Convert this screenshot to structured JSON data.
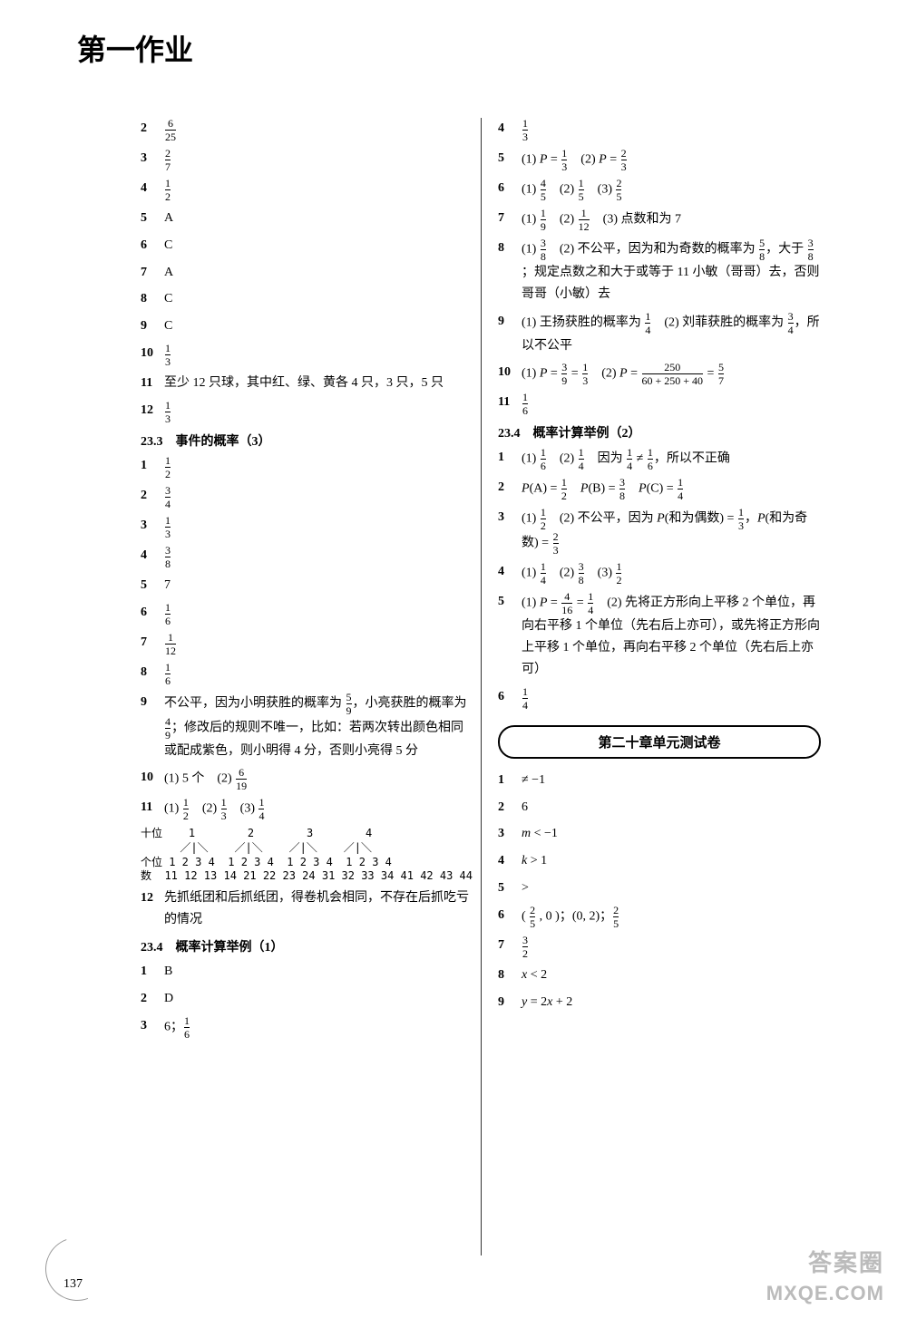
{
  "page_title": "第一作业",
  "page_number": "137",
  "watermark1": "答案圈",
  "watermark2": "MXQE.COM",
  "left": {
    "items_a": [
      {
        "n": "2",
        "html": "<span class='frac'><span class='n'>6</span><span class='d'>25</span></span>"
      },
      {
        "n": "3",
        "html": "<span class='frac'><span class='n'>2</span><span class='d'>7</span></span>"
      },
      {
        "n": "4",
        "html": "<span class='frac'><span class='n'>1</span><span class='d'>2</span></span>"
      },
      {
        "n": "5",
        "html": "A"
      },
      {
        "n": "6",
        "html": "C"
      },
      {
        "n": "7",
        "html": "A"
      },
      {
        "n": "8",
        "html": "C"
      },
      {
        "n": "9",
        "html": "C"
      },
      {
        "n": "10",
        "html": "<span class='frac'><span class='n'>1</span><span class='d'>3</span></span>"
      },
      {
        "n": "11",
        "html": "至少 12 只球，其中红、绿、黄各 4 只，3 只，5 只"
      },
      {
        "n": "12",
        "html": "<span class='frac'><span class='n'>1</span><span class='d'>3</span></span>"
      }
    ],
    "section_b": "23.3　事件的概率（3）",
    "items_b": [
      {
        "n": "1",
        "html": "<span class='frac'><span class='n'>1</span><span class='d'>2</span></span>"
      },
      {
        "n": "2",
        "html": "<span class='frac'><span class='n'>3</span><span class='d'>4</span></span>"
      },
      {
        "n": "3",
        "html": "<span class='frac'><span class='n'>1</span><span class='d'>3</span></span>"
      },
      {
        "n": "4",
        "html": "<span class='frac'><span class='n'>3</span><span class='d'>8</span></span>"
      },
      {
        "n": "5",
        "html": "7"
      },
      {
        "n": "6",
        "html": "<span class='frac'><span class='n'>1</span><span class='d'>6</span></span>"
      },
      {
        "n": "7",
        "html": "<span class='frac'><span class='n'>1</span><span class='d'>12</span></span>"
      },
      {
        "n": "8",
        "html": "<span class='frac'><span class='n'>1</span><span class='d'>6</span></span>"
      },
      {
        "n": "9",
        "html": "不公平，因为小明获胜的概率为 <span class='frac'><span class='n'>5</span><span class='d'>9</span></span>，小亮获胜的概率为 <span class='frac'><span class='n'>4</span><span class='d'>9</span></span>；修改后的规则不唯一，比如：若两次转出颜色相同或配成紫色，则小明得 4 分，否则小亮得 5 分"
      },
      {
        "n": "10",
        "html": "(1) 5 个　(2) <span class='frac'><span class='n'>6</span><span class='d'>19</span></span>"
      },
      {
        "n": "11",
        "html": "(1) <span class='frac'><span class='n'>1</span><span class='d'>2</span></span>　(2) <span class='frac'><span class='n'>1</span><span class='d'>3</span></span>　(3) <span class='frac'><span class='n'>1</span><span class='d'>4</span></span>"
      }
    ],
    "tree": {
      "row1": "十位    1        2        3        4",
      "row2": "      ／|＼    ／|＼    ／|＼    ／|＼",
      "row3": "个位 1 2 3 4  1 2 3 4  1 2 3 4  1 2 3 4",
      "row4": "数  11 12 13 14 21 22 23 24 31 32 33 34 41 42 43 44"
    },
    "items_b2": [
      {
        "n": "12",
        "html": "先抓纸团和后抓纸团，得卷机会相同，不存在后抓吃亏的情况"
      }
    ],
    "section_c": "23.4　概率计算举例（1）",
    "items_c": [
      {
        "n": "1",
        "html": "B"
      },
      {
        "n": "2",
        "html": "D"
      },
      {
        "n": "3",
        "html": "6；<span class='frac'><span class='n'>1</span><span class='d'>6</span></span>"
      }
    ]
  },
  "right": {
    "items_a": [
      {
        "n": "4",
        "html": "<span class='frac'><span class='n'>1</span><span class='d'>3</span></span>"
      },
      {
        "n": "5",
        "html": "(1) <span class='ital'>P</span> = <span class='frac'><span class='n'>1</span><span class='d'>3</span></span>　(2) <span class='ital'>P</span> = <span class='frac'><span class='n'>2</span><span class='d'>3</span></span>"
      },
      {
        "n": "6",
        "html": "(1) <span class='frac'><span class='n'>4</span><span class='d'>5</span></span>　(2) <span class='frac'><span class='n'>1</span><span class='d'>5</span></span>　(3) <span class='frac'><span class='n'>2</span><span class='d'>5</span></span>"
      },
      {
        "n": "7",
        "html": "(1) <span class='frac'><span class='n'>1</span><span class='d'>9</span></span>　(2) <span class='frac'><span class='n'>1</span><span class='d'>12</span></span>　(3) 点数和为 7"
      },
      {
        "n": "8",
        "html": "(1) <span class='frac'><span class='n'>3</span><span class='d'>8</span></span>　(2) 不公平，因为和为奇数的概率为 <span class='frac'><span class='n'>5</span><span class='d'>8</span></span>，大于 <span class='frac'><span class='n'>3</span><span class='d'>8</span></span>；规定点数之和大于或等于 11 小敏（哥哥）去，否则哥哥（小敏）去"
      },
      {
        "n": "9",
        "html": "(1) 王扬获胜的概率为 <span class='frac'><span class='n'>1</span><span class='d'>4</span></span>　(2) 刘菲获胜的概率为 <span class='frac'><span class='n'>3</span><span class='d'>4</span></span>，所以不公平"
      },
      {
        "n": "10",
        "html": "(1) <span class='ital'>P</span> = <span class='frac'><span class='n'>3</span><span class='d'>9</span></span> = <span class='frac'><span class='n'>1</span><span class='d'>3</span></span>　(2) <span class='ital'>P</span> = <span class='frac'><span class='n'>250</span><span class='d'>60 + 250 + 40</span></span> = <span class='frac'><span class='n'>5</span><span class='d'>7</span></span>"
      },
      {
        "n": "11",
        "html": "<span class='frac'><span class='n'>1</span><span class='d'>6</span></span>"
      }
    ],
    "section_b": "23.4　概率计算举例（2）",
    "items_b": [
      {
        "n": "1",
        "html": "(1) <span class='frac'><span class='n'>1</span><span class='d'>6</span></span>　(2) <span class='frac'><span class='n'>1</span><span class='d'>4</span></span>　因为 <span class='frac'><span class='n'>1</span><span class='d'>4</span></span> ≠ <span class='frac'><span class='n'>1</span><span class='d'>6</span></span>，所以不正确"
      },
      {
        "n": "2",
        "html": "<span class='ital'>P</span>(A) = <span class='frac'><span class='n'>1</span><span class='d'>2</span></span>　<span class='ital'>P</span>(B) = <span class='frac'><span class='n'>3</span><span class='d'>8</span></span>　<span class='ital'>P</span>(C) = <span class='frac'><span class='n'>1</span><span class='d'>4</span></span>"
      },
      {
        "n": "3",
        "html": "(1) <span class='frac'><span class='n'>1</span><span class='d'>2</span></span>　(2) 不公平，因为 <span class='ital'>P</span>(和为偶数) = <span class='frac'><span class='n'>1</span><span class='d'>3</span></span>，<span class='ital'>P</span>(和为奇数) = <span class='frac'><span class='n'>2</span><span class='d'>3</span></span>"
      },
      {
        "n": "4",
        "html": "(1) <span class='frac'><span class='n'>1</span><span class='d'>4</span></span>　(2) <span class='frac'><span class='n'>3</span><span class='d'>8</span></span>　(3) <span class='frac'><span class='n'>1</span><span class='d'>2</span></span>"
      },
      {
        "n": "5",
        "html": "(1) <span class='ital'>P</span> = <span class='frac'><span class='n'>4</span><span class='d'>16</span></span> = <span class='frac'><span class='n'>1</span><span class='d'>4</span></span>　(2) 先将正方形向上平移 2 个单位，再向右平移 1 个单位（先右后上亦可），或先将正方形向上平移 1 个单位，再向右平移 2 个单位（先右后上亦可）"
      },
      {
        "n": "6",
        "html": "<span class='frac'><span class='n'>1</span><span class='d'>4</span></span>"
      }
    ],
    "chapter_box": "第二十章单元测试卷",
    "items_c": [
      {
        "n": "1",
        "html": "≠ −1"
      },
      {
        "n": "2",
        "html": "6"
      },
      {
        "n": "3",
        "html": "<span class='ital'>m</span> &lt; −1"
      },
      {
        "n": "4",
        "html": "<span class='ital'>k</span> &gt; 1"
      },
      {
        "n": "5",
        "html": "&gt;"
      },
      {
        "n": "6",
        "html": "( <span class='frac'><span class='n'>2</span><span class='d'>5</span></span> , 0 )；(0, 2)；<span class='frac'><span class='n'>2</span><span class='d'>5</span></span>"
      },
      {
        "n": "7",
        "html": "<span class='frac'><span class='n'>3</span><span class='d'>2</span></span>"
      },
      {
        "n": "8",
        "html": "<span class='ital'>x</span> &lt; 2"
      },
      {
        "n": "9",
        "html": "<span class='ital'>y</span> = 2<span class='ital'>x</span> + 2"
      }
    ]
  }
}
